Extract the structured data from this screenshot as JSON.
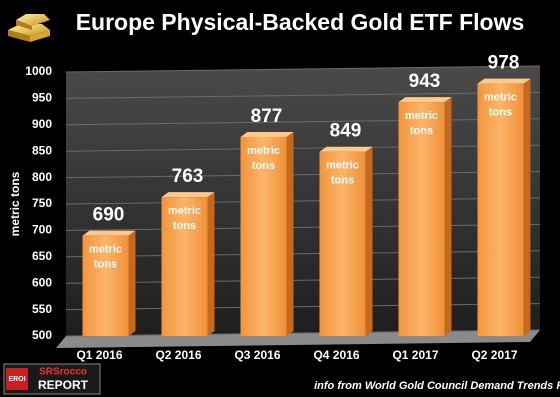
{
  "chart_data": {
    "type": "bar",
    "title": "Europe Physical-Backed Gold ETF Flows",
    "y_label": "metric tons",
    "categories": [
      "Q1 2016",
      "Q2 2016",
      "Q3 2016",
      "Q4 2016",
      "Q1 2017",
      "Q2 2017"
    ],
    "values": [
      690,
      763,
      877,
      849,
      943,
      978
    ],
    "bar_unit_label": "metric tons",
    "color": "#f5a04a",
    "ylim": [
      500,
      1000
    ],
    "yticks": [
      500,
      550,
      600,
      650,
      700,
      750,
      800,
      850,
      900,
      950,
      1000
    ],
    "grid": true,
    "source": "info from World Gold Council Demand Trends Reports",
    "logo": {
      "badge": "EROI",
      "line1": "SRSrocco",
      "line2": "REPORT"
    }
  }
}
